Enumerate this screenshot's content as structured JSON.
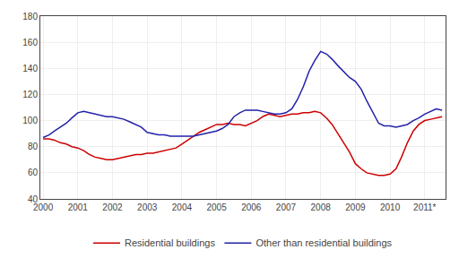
{
  "chart_data": {
    "type": "line",
    "x": [
      2000.0,
      2000.17,
      2000.33,
      2000.5,
      2000.67,
      2000.83,
      2001.0,
      2001.17,
      2001.33,
      2001.5,
      2001.67,
      2001.83,
      2002.0,
      2002.17,
      2002.33,
      2002.5,
      2002.67,
      2002.83,
      2003.0,
      2003.17,
      2003.33,
      2003.5,
      2003.67,
      2003.83,
      2004.0,
      2004.17,
      2004.33,
      2004.5,
      2004.67,
      2004.83,
      2005.0,
      2005.17,
      2005.33,
      2005.5,
      2005.67,
      2005.83,
      2006.0,
      2006.17,
      2006.33,
      2006.5,
      2006.67,
      2006.83,
      2007.0,
      2007.17,
      2007.33,
      2007.5,
      2007.67,
      2007.83,
      2008.0,
      2008.17,
      2008.33,
      2008.5,
      2008.67,
      2008.83,
      2009.0,
      2009.17,
      2009.33,
      2009.5,
      2009.67,
      2009.83,
      2010.0,
      2010.17,
      2010.33,
      2010.5,
      2010.67,
      2010.83,
      2011.0,
      2011.17,
      2011.33,
      2011.5
    ],
    "series": [
      {
        "name": "Residential buildings",
        "color": "#cc0000",
        "values": [
          86,
          86,
          85,
          83,
          82,
          80,
          79,
          77,
          74,
          72,
          71,
          70,
          70,
          71,
          72,
          73,
          74,
          74,
          75,
          75,
          76,
          77,
          78,
          79,
          82,
          85,
          88,
          91,
          93,
          95,
          97,
          97,
          98,
          97,
          97,
          96,
          98,
          100,
          103,
          105,
          104,
          103,
          104,
          105,
          105,
          106,
          106,
          107,
          106,
          102,
          97,
          90,
          83,
          76,
          67,
          63,
          60,
          59,
          58,
          58,
          59,
          63,
          72,
          83,
          92,
          97,
          100,
          101,
          102,
          103
        ]
      },
      {
        "name": "Other than residential buildings",
        "color": "#2222aa",
        "values": [
          87,
          89,
          92,
          95,
          98,
          102,
          106,
          107,
          106,
          105,
          104,
          103,
          103,
          102,
          101,
          99,
          97,
          95,
          91,
          90,
          89,
          89,
          88,
          88,
          88,
          88,
          88,
          89,
          90,
          91,
          92,
          94,
          97,
          103,
          106,
          108,
          108,
          108,
          107,
          106,
          105,
          105,
          106,
          109,
          116,
          126,
          138,
          146,
          153,
          151,
          147,
          142,
          137,
          133,
          130,
          124,
          115,
          106,
          98,
          96,
          96,
          95,
          96,
          97,
          100,
          102,
          105,
          107,
          109,
          108
        ]
      }
    ],
    "xlim": [
      1999.92,
      2011.6
    ],
    "xticks": [
      2000,
      2001,
      2002,
      2003,
      2004,
      2005,
      2006,
      2007,
      2008,
      2009,
      2010,
      {
        "value": 2011,
        "label": "2011*"
      }
    ],
    "ylim": [
      40,
      180
    ],
    "yticks": [
      40,
      60,
      80,
      100,
      120,
      140,
      160,
      180
    ],
    "grid": true,
    "legend": "bottom"
  }
}
